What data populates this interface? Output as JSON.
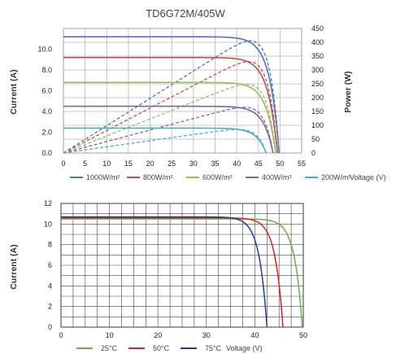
{
  "chart_data": [
    {
      "type": "line",
      "title": "TD6G72M/405W",
      "xlabel": "Voltage (V)",
      "ylabel": "Current (A)",
      "y2label": "Power (W)",
      "xlim": [
        0,
        55
      ],
      "ylim": [
        0,
        12
      ],
      "y2lim": [
        0,
        450
      ],
      "xticks": [
        "0",
        "5",
        "10",
        "15",
        "20",
        "25",
        "30",
        "35",
        "40",
        "45",
        "50",
        "55"
      ],
      "yticks": [
        "0.0",
        "2.0",
        "4.0",
        "6.0",
        "8.0",
        "10.0"
      ],
      "y2ticks": [
        "0",
        "50",
        "100",
        "150",
        "200",
        "250",
        "300",
        "350",
        "400",
        "450"
      ],
      "grid": true,
      "legend_position": "bottom",
      "series": [
        {
          "name": "1000W/m²",
          "color": "#4a78b8",
          "isc": 11.2,
          "voc": 49.8,
          "pmax": 405,
          "vmp": 41.5
        },
        {
          "name": "800W/m²",
          "color": "#c0504d",
          "isc": 9.2,
          "voc": 49.4,
          "pmax": 330,
          "vmp": 41.5
        },
        {
          "name": "600W/m²",
          "color": "#9bbb59",
          "isc": 6.8,
          "voc": 49.0,
          "pmax": 248,
          "vmp": 41.5
        },
        {
          "name": "400W/m²",
          "color": "#8064a2",
          "isc": 4.5,
          "voc": 48.4,
          "pmax": 165,
          "vmp": 41.0
        },
        {
          "name": "200W/m²",
          "color": "#4bacc6",
          "isc": 2.4,
          "voc": 46.8,
          "pmax": 85,
          "vmp": 40.5
        }
      ]
    },
    {
      "type": "line",
      "title": "",
      "xlabel": "Voltage (V)",
      "ylabel": "Current (A)",
      "xlim": [
        0,
        50
      ],
      "ylim": [
        0,
        12
      ],
      "xticks": [
        "0",
        "10",
        "20",
        "30",
        "40",
        "50"
      ],
      "yticks": [
        "0",
        "2",
        "4",
        "6",
        "8",
        "10",
        "12"
      ],
      "grid": true,
      "legend_position": "bottom",
      "series": [
        {
          "name": "25°C",
          "color": "#6bb33c",
          "isc": 10.5,
          "voc": 49.8
        },
        {
          "name": "50°C",
          "color": "#e02020",
          "isc": 10.6,
          "voc": 45.8
        },
        {
          "name": "75°C",
          "color": "#1c3ea0",
          "isc": 10.7,
          "voc": 42.5
        }
      ]
    }
  ]
}
